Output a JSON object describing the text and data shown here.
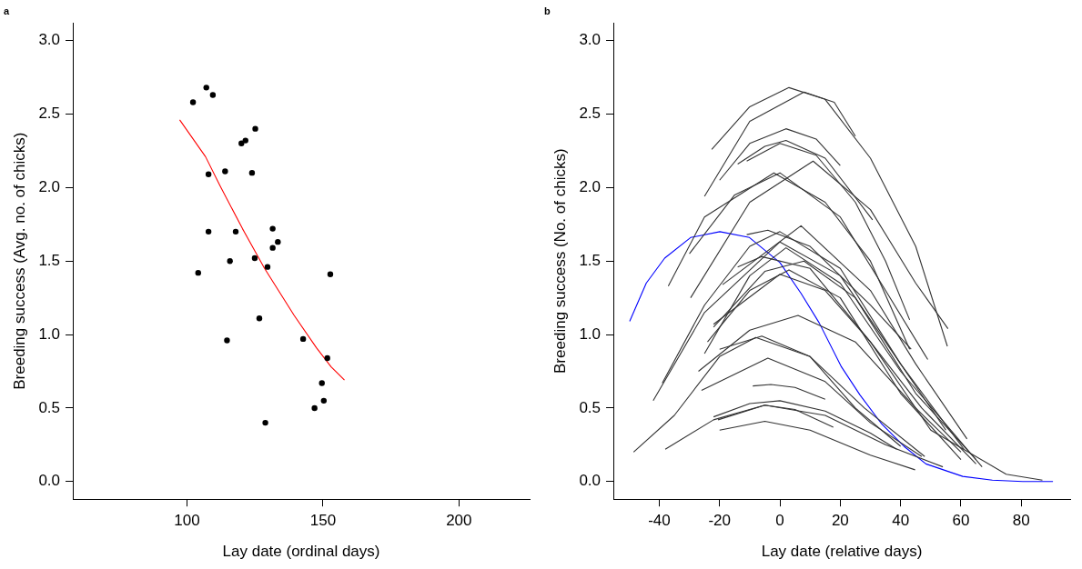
{
  "chart_data": [
    {
      "type": "scatter",
      "title": "a",
      "xlabel": "Lay date (ordinal days)",
      "ylabel": "Breeding success (Avg. no. of chicks)",
      "xlim": [
        58,
        226
      ],
      "ylim": [
        -0.12,
        3.12
      ],
      "xticks": [
        100,
        150,
        200
      ],
      "yticks": [
        {
          "value": 0,
          "label": "0.0"
        },
        {
          "value": 0.5,
          "label": "0.5"
        },
        {
          "value": 1,
          "label": "1.0"
        },
        {
          "value": 1.5,
          "label": "1.5"
        },
        {
          "value": 2,
          "label": "2.0"
        },
        {
          "value": 2.5,
          "label": "2.5"
        },
        {
          "value": 3,
          "label": "3.0"
        }
      ],
      "series": [
        {
          "type": "scatter",
          "color": "#000000",
          "marker": "circle",
          "x": [
            102.2,
            107.1,
            109.5,
            125.1,
            120.0,
            121.5,
            114.0,
            123.9,
            107.9,
            131.5,
            107.9,
            117.9,
            133.4,
            131.5,
            124.9,
            115.8,
            129.6,
            104.1,
            152.7,
            126.6,
            114.7,
            142.7,
            151.6,
            149.6,
            150.3,
            146.9,
            128.8
          ],
          "values": [
            2.58,
            2.68,
            2.63,
            2.4,
            2.3,
            2.32,
            2.11,
            2.1,
            2.09,
            1.72,
            1.7,
            1.7,
            1.63,
            1.59,
            1.52,
            1.5,
            1.46,
            1.42,
            1.41,
            1.11,
            0.96,
            0.97,
            0.84,
            0.67,
            0.55,
            0.5,
            0.4
          ]
        },
        {
          "type": "line",
          "color": "#ff0000",
          "marker": "none",
          "x": [
            97.3,
            106.8,
            112.2,
            120.4,
            128.5,
            139.4,
            147.6,
            153,
            157.9
          ],
          "values": [
            2.46,
            2.21,
            2.01,
            1.72,
            1.45,
            1.13,
            0.91,
            0.78,
            0.69
          ]
        }
      ]
    },
    {
      "type": "line",
      "title": "b",
      "xlabel": "Lay date (relative days)",
      "ylabel": "Breeding success (No. of chicks)",
      "xlim": [
        -55.2,
        96.2
      ],
      "ylim": [
        -0.12,
        3.12
      ],
      "xticks": [
        -40,
        -20,
        0,
        20,
        40,
        60,
        80
      ],
      "yticks": [
        {
          "value": 0,
          "label": "0.0"
        },
        {
          "value": 0.5,
          "label": "0.5"
        },
        {
          "value": 1,
          "label": "1.0"
        },
        {
          "value": 1.5,
          "label": "1.5"
        },
        {
          "value": 2,
          "label": "2.0"
        },
        {
          "value": 2.5,
          "label": "2.5"
        },
        {
          "value": 3,
          "label": "3.0"
        }
      ],
      "marker": "none",
      "series": [
        {
          "color": "#333333",
          "x": [
            -22.6,
            -10,
            3,
            15,
            30,
            45,
            55.5
          ],
          "values": [
            2.26,
            2.55,
            2.68,
            2.6,
            2.2,
            1.6,
            0.92
          ]
        },
        {
          "color": "#333333",
          "x": [
            -25,
            -10,
            8,
            18,
            25
          ],
          "values": [
            1.94,
            2.45,
            2.65,
            2.58,
            2.35
          ]
        },
        {
          "color": "#333333",
          "x": [
            -20,
            -10,
            2,
            12,
            20
          ],
          "values": [
            2.05,
            2.3,
            2.4,
            2.33,
            2.15
          ]
        },
        {
          "color": "#333333",
          "x": [
            -14,
            -5,
            2,
            15,
            30.7
          ],
          "values": [
            2.16,
            2.28,
            2.32,
            2.2,
            1.78
          ]
        },
        {
          "color": "#333333",
          "x": [
            -11,
            0,
            12,
            25,
            35,
            43
          ],
          "values": [
            2.18,
            2.3,
            2.22,
            1.9,
            1.5,
            1.1
          ]
        },
        {
          "color": "#333333",
          "x": [
            -37,
            -25,
            -2,
            15,
            30,
            43
          ],
          "values": [
            1.33,
            1.8,
            2.1,
            1.9,
            1.5,
            0.9
          ]
        },
        {
          "color": "#333333",
          "x": [
            -30,
            -15,
            0,
            20,
            35,
            49
          ],
          "values": [
            1.55,
            1.95,
            2.1,
            1.8,
            1.3,
            0.83
          ]
        },
        {
          "color": "#333333",
          "x": [
            -29.6,
            -10,
            11,
            30,
            45,
            55.7
          ],
          "values": [
            1.25,
            1.9,
            2.18,
            1.85,
            1.35,
            1.04
          ]
        },
        {
          "color": "#333333",
          "x": [
            -19,
            7,
            30,
            45,
            62
          ],
          "values": [
            1.34,
            1.74,
            1.3,
            0.8,
            0.29
          ]
        },
        {
          "color": "#333333",
          "x": [
            -11,
            -4,
            10,
            30,
            43.5
          ],
          "values": [
            1.68,
            1.71,
            1.6,
            1.2,
            0.9
          ]
        },
        {
          "color": "#333333",
          "x": [
            -39,
            -25,
            -10,
            0,
            20,
            40,
            61
          ],
          "values": [
            0.67,
            1.2,
            1.6,
            1.7,
            1.45,
            0.8,
            0.22
          ]
        },
        {
          "color": "#333333",
          "x": [
            -42,
            -25,
            0,
            20,
            40,
            55
          ],
          "values": [
            0.55,
            1.15,
            1.63,
            1.4,
            0.8,
            0.35
          ]
        },
        {
          "color": "#333333",
          "x": [
            -25,
            -10,
            2,
            20,
            40,
            67
          ],
          "values": [
            0.87,
            1.4,
            1.59,
            1.35,
            0.75,
            0.1
          ]
        },
        {
          "color": "#333333",
          "x": [
            -14,
            -6,
            10,
            30,
            50,
            75,
            87
          ],
          "values": [
            1.46,
            1.53,
            1.45,
            0.95,
            0.35,
            0.05,
            0.01
          ]
        },
        {
          "color": "#333333",
          "x": [
            -22,
            -5,
            8,
            25,
            45,
            65
          ],
          "values": [
            1.05,
            1.43,
            1.5,
            1.25,
            0.6,
            0.15
          ]
        },
        {
          "color": "#333333",
          "x": [
            -24,
            -10,
            3,
            20,
            40,
            60
          ],
          "values": [
            0.95,
            1.3,
            1.44,
            1.25,
            0.6,
            0.15
          ]
        },
        {
          "color": "#333333",
          "x": [
            -22,
            0,
            15,
            30,
            47,
            65
          ],
          "values": [
            1.07,
            1.41,
            1.3,
            0.95,
            0.5,
            0.12
          ]
        },
        {
          "color": "#333333",
          "x": [
            -27,
            -10,
            6,
            25,
            45,
            60
          ],
          "values": [
            0.75,
            1.03,
            1.13,
            0.95,
            0.5,
            0.2
          ]
        },
        {
          "color": "#333333",
          "x": [
            -20,
            -6,
            10,
            28,
            48
          ],
          "values": [
            0.9,
            0.99,
            0.85,
            0.5,
            0.17
          ]
        },
        {
          "color": "#333333",
          "x": [
            -48.5,
            -35,
            -20,
            -8,
            10,
            25,
            40
          ],
          "values": [
            0.2,
            0.45,
            0.85,
            0.98,
            0.85,
            0.5,
            0.24
          ]
        },
        {
          "color": "#333333",
          "x": [
            -26,
            -4,
            15,
            30,
            47
          ],
          "values": [
            0.62,
            0.84,
            0.68,
            0.4,
            0.17
          ]
        },
        {
          "color": "#333333",
          "x": [
            -9,
            -3,
            5,
            15
          ],
          "values": [
            0.65,
            0.66,
            0.64,
            0.56
          ]
        },
        {
          "color": "#333333",
          "x": [
            -22,
            -10,
            0,
            15,
            30,
            38.7
          ],
          "values": [
            0.44,
            0.53,
            0.55,
            0.48,
            0.33,
            0.22
          ]
        },
        {
          "color": "#333333",
          "x": [
            -20.5,
            -5,
            5,
            17.7
          ],
          "values": [
            0.42,
            0.52,
            0.49,
            0.37
          ]
        },
        {
          "color": "#333333",
          "x": [
            -20,
            -5,
            10,
            30,
            44.8
          ],
          "values": [
            0.35,
            0.41,
            0.35,
            0.18,
            0.08
          ]
        },
        {
          "color": "#333333",
          "x": [
            -38,
            -22,
            -5,
            15,
            35,
            54
          ],
          "values": [
            0.22,
            0.42,
            0.52,
            0.45,
            0.25,
            0.1
          ]
        },
        {
          "color": "#0000ff",
          "x": [
            -49.8,
            -44.3,
            -38.2,
            -29.6,
            -19.9,
            -10.1,
            0,
            7,
            13,
            20.4,
            26.5,
            33.8,
            41.1,
            48.4,
            60.6,
            70.4,
            80.5,
            90.5
          ],
          "values": [
            1.09,
            1.35,
            1.52,
            1.66,
            1.7,
            1.66,
            1.49,
            1.28,
            1.08,
            0.78,
            0.59,
            0.39,
            0.24,
            0.12,
            0.035,
            0.01,
            0,
            0
          ]
        }
      ]
    }
  ]
}
